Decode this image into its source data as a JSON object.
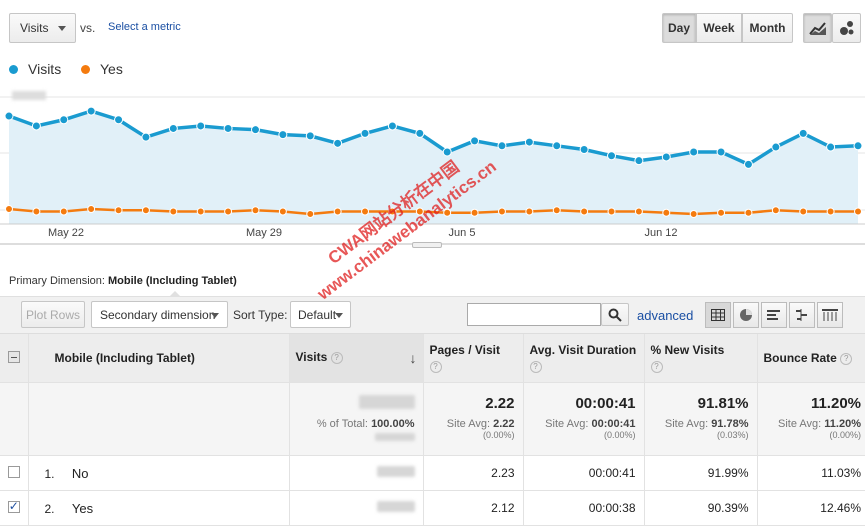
{
  "header": {
    "metric": "Visits",
    "vs": "vs.",
    "select_metric": "Select a metric",
    "granularity": [
      "Day",
      "Week",
      "Month"
    ]
  },
  "legend": [
    {
      "label": "Visits",
      "color": "#1a9bd0"
    },
    {
      "label": "Yes",
      "color": "#f47b0f"
    }
  ],
  "chart_data": {
    "type": "line",
    "x_ticks": [
      "May 22",
      "May 29",
      "Jun 5",
      "Jun 12"
    ],
    "series": [
      {
        "name": "Visits",
        "color": "#1a9bd0",
        "values": [
          0.79,
          0.71,
          0.76,
          0.83,
          0.76,
          0.62,
          0.69,
          0.71,
          0.69,
          0.68,
          0.64,
          0.63,
          0.57,
          0.65,
          0.71,
          0.65,
          0.5,
          0.59,
          0.55,
          0.58,
          0.55,
          0.52,
          0.47,
          0.43,
          0.46,
          0.5,
          0.5,
          0.4,
          0.54,
          0.65,
          0.54,
          0.55
        ]
      },
      {
        "name": "Yes",
        "color": "#f47b0f",
        "values": [
          0.04,
          0.02,
          0.02,
          0.04,
          0.03,
          0.03,
          0.02,
          0.02,
          0.02,
          0.03,
          0.02,
          0.0,
          0.02,
          0.02,
          0.02,
          0.02,
          0.01,
          0.01,
          0.02,
          0.02,
          0.03,
          0.02,
          0.02,
          0.02,
          0.01,
          0.0,
          0.01,
          0.01,
          0.03,
          0.02,
          0.02,
          0.02
        ]
      }
    ]
  },
  "primary_dimension": {
    "label": "Primary Dimension:",
    "value": "Mobile (Including Tablet)"
  },
  "toolbar": {
    "plot_rows": "Plot Rows",
    "secondary": "Secondary dimension",
    "sort_type_label": "Sort Type:",
    "sort_type_value": "Default",
    "advanced": "advanced"
  },
  "table": {
    "headers": {
      "dimension": "Mobile (Including Tablet)",
      "visits": "Visits",
      "pages": "Pages / Visit",
      "duration": "Avg. Visit Duration",
      "new_visits": "% New Visits",
      "bounce": "Bounce Rate"
    },
    "totals": {
      "pct_total_label": "% of Total:",
      "pct_total": "100.00%",
      "pages": "2.22",
      "pages_avg": "2.22",
      "pages_diff": "(0.00%)",
      "duration": "00:00:41",
      "duration_avg": "00:00:41",
      "duration_diff": "(0.00%)",
      "new_visits": "91.81%",
      "new_visits_avg": "91.78%",
      "new_visits_diff": "(0.03%)",
      "bounce": "11.20%",
      "bounce_avg": "11.20%",
      "bounce_diff": "(0.00%)",
      "site_avg_label": "Site Avg:"
    },
    "rows": [
      {
        "index": "1.",
        "name": "No",
        "checked": false,
        "pages": "2.23",
        "duration": "00:00:41",
        "new_visits": "91.99%",
        "bounce": "11.03%"
      },
      {
        "index": "2.",
        "name": "Yes",
        "checked": true,
        "pages": "2.12",
        "duration": "00:00:38",
        "new_visits": "90.39%",
        "bounce": "12.46%"
      }
    ]
  },
  "watermark": {
    "line1": "CWA网站分析在中国",
    "line2": "www.chinawebanalytics.cn"
  }
}
